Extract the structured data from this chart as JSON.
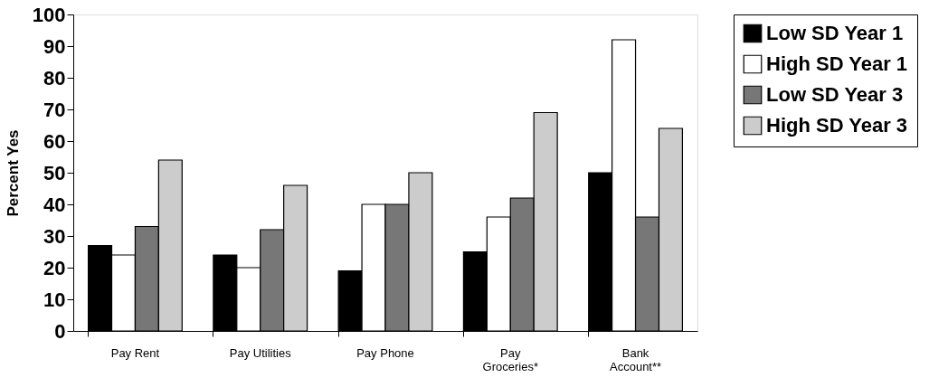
{
  "chart_data": {
    "type": "bar",
    "ylabel": "Percent Yes",
    "categories": [
      "Pay Rent",
      "Pay Utilities",
      "Pay Phone",
      "Pay Groceries*",
      "Bank Account**"
    ],
    "series": [
      {
        "name": "Low SD Year 1",
        "color": "#000000",
        "values": [
          27,
          24,
          19,
          25,
          50
        ]
      },
      {
        "name": "High SD Year 1",
        "color": "#ffffff",
        "values": [
          24,
          20,
          40,
          36,
          92
        ]
      },
      {
        "name": "Low SD Year 3",
        "color": "#777777",
        "values": [
          33,
          32,
          40,
          42,
          36
        ]
      },
      {
        "name": "High SD Year 3",
        "color": "#cccccc",
        "values": [
          54,
          46,
          50,
          69,
          64
        ]
      }
    ],
    "ylim": [
      0,
      100
    ],
    "yticks": [
      0,
      10,
      20,
      30,
      40,
      50,
      60,
      70,
      80,
      90,
      100
    ],
    "grid": false,
    "legend": "right"
  }
}
